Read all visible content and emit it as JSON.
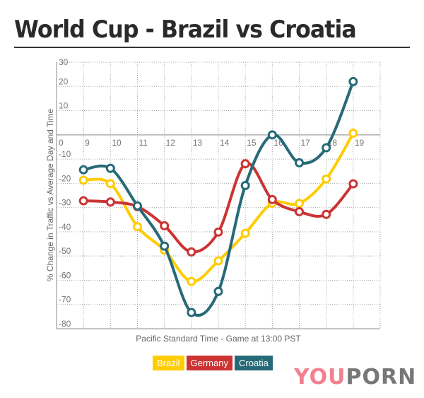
{
  "title": "World Cup - Brazil vs Croatia",
  "logo": {
    "part1": "YOU",
    "part2": "PORN"
  },
  "chart_data": {
    "type": "line",
    "title": "World Cup - Brazil vs Croatia",
    "xlabel": "Pacific Standard Time - Game at 13:00 PST",
    "ylabel": "% Change in Traffic vs Average Day and Time",
    "x": [
      9,
      10,
      11,
      12,
      13,
      14,
      15,
      16,
      17,
      18,
      19
    ],
    "xlim": [
      8,
      20
    ],
    "ylim": [
      -80,
      30
    ],
    "yticks": [
      30,
      20,
      10,
      0,
      -10,
      -20,
      -30,
      -40,
      -50,
      -60,
      -70,
      -80
    ],
    "grid": true,
    "legend": "bottom",
    "series": [
      {
        "name": "Brazil",
        "color": "#ffcc00",
        "values": [
          -18.7,
          -20.1,
          -37.9,
          -47.6,
          -60.5,
          -52,
          -40.6,
          -28.2,
          -28.3,
          -18.2,
          0.7
        ]
      },
      {
        "name": "Germany",
        "color": "#cc3333",
        "values": [
          -27.2,
          -27.7,
          -29.6,
          -37.5,
          -48.3,
          -40.1,
          -11.9,
          -26.7,
          -31.7,
          -32.8,
          -20.2
        ]
      },
      {
        "name": "Croatia",
        "color": "#266a78",
        "values": [
          -14.4,
          -13.8,
          -29.3,
          -45.9,
          -73.3,
          -64.6,
          -20.9,
          0,
          -11.5,
          -5.3,
          22
        ]
      }
    ]
  }
}
